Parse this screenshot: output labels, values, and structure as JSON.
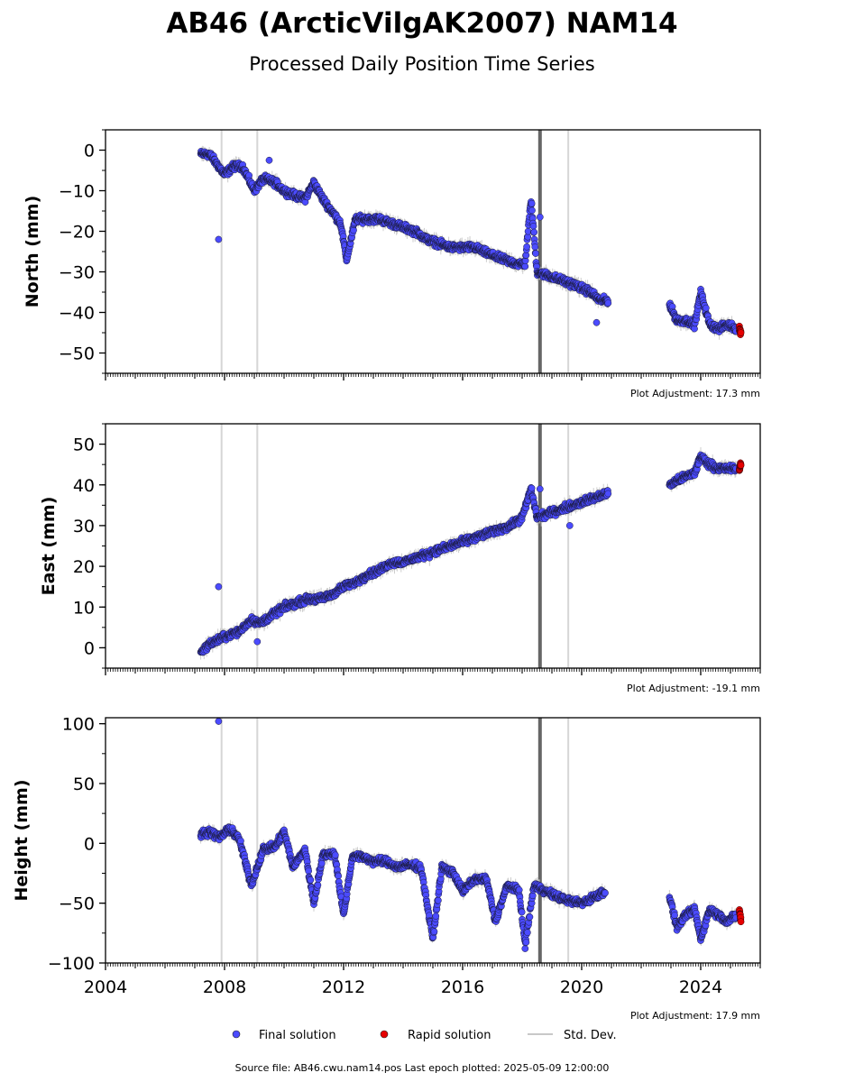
{
  "chart_data": {
    "type": "scatter",
    "title": "AB46 (ArcticVilgAK2007) NAM14",
    "subtitle": "Processed Daily Position Time Series",
    "x_ticks": [
      "2004",
      "2008",
      "2012",
      "2016",
      "2020",
      "2024"
    ],
    "xlim": [
      2004.0,
      2026.0
    ],
    "event_lines": [
      {
        "x": 2007.9,
        "style": "thin-light"
      },
      {
        "x": 2009.1,
        "style": "thin-light"
      },
      {
        "x": 2018.6,
        "style": "thick-dark"
      },
      {
        "x": 2019.55,
        "style": "thin-light"
      }
    ],
    "legend": [
      {
        "label": "Final solution",
        "color": "#4b4bff",
        "marker": "circle"
      },
      {
        "label": "Rapid solution",
        "color": "#e60000",
        "marker": "circle"
      },
      {
        "label": "Std. Dev.",
        "color": "#c8c8c8",
        "marker": "line"
      }
    ],
    "panels": [
      {
        "ylabel": "North (mm)",
        "ylim": [
          -55,
          5
        ],
        "yticks": [
          0,
          -10,
          -20,
          -30,
          -40,
          -50
        ],
        "ytick_labels": [
          "0",
          "−10",
          "−20",
          "−30",
          "−40",
          "−50"
        ],
        "adjustment": "Plot Adjustment: 17.3 mm",
        "final": [
          [
            2007.2,
            -1
          ],
          [
            2007.5,
            -1
          ],
          [
            2007.8,
            -4
          ],
          [
            2008.0,
            -6
          ],
          [
            2008.3,
            -4
          ],
          [
            2008.6,
            -4
          ],
          [
            2009.0,
            -10
          ],
          [
            2009.3,
            -7
          ],
          [
            2009.7,
            -8
          ],
          [
            2010.0,
            -10
          ],
          [
            2010.3,
            -11
          ],
          [
            2010.7,
            -12
          ],
          [
            2011.0,
            -8
          ],
          [
            2011.3,
            -12
          ],
          [
            2011.6,
            -15
          ],
          [
            2011.9,
            -18
          ],
          [
            2012.1,
            -27
          ],
          [
            2012.4,
            -17
          ],
          [
            2012.8,
            -17
          ],
          [
            2013.2,
            -17
          ],
          [
            2013.6,
            -18
          ],
          [
            2014.0,
            -19
          ],
          [
            2014.4,
            -20
          ],
          [
            2014.8,
            -22
          ],
          [
            2015.2,
            -23
          ],
          [
            2015.6,
            -24
          ],
          [
            2016.0,
            -24
          ],
          [
            2016.4,
            -24
          ],
          [
            2016.7,
            -25
          ],
          [
            2017.0,
            -26
          ],
          [
            2017.4,
            -27
          ],
          [
            2017.8,
            -28
          ],
          [
            2018.1,
            -28
          ],
          [
            2018.3,
            -12
          ],
          [
            2018.5,
            -30
          ],
          [
            2018.9,
            -31
          ],
          [
            2019.3,
            -32
          ],
          [
            2019.7,
            -33
          ],
          [
            2020.0,
            -34
          ],
          [
            2020.3,
            -35
          ],
          [
            2020.6,
            -37
          ],
          [
            2020.9,
            -37
          ],
          [
            2022.95,
            -38
          ],
          [
            2023.2,
            -42
          ],
          [
            2023.5,
            -42
          ],
          [
            2023.8,
            -43
          ],
          [
            2024.0,
            -35
          ],
          [
            2024.3,
            -43
          ],
          [
            2024.6,
            -44
          ],
          [
            2024.9,
            -43
          ],
          [
            2025.2,
            -44
          ]
        ],
        "rapid": [
          [
            2025.3,
            -44
          ],
          [
            2025.35,
            -45
          ]
        ],
        "outliers": [
          [
            2007.8,
            -22
          ],
          [
            2009.5,
            -2.5
          ],
          [
            2018.6,
            -16.5
          ],
          [
            2020.5,
            -42.5
          ]
        ]
      },
      {
        "ylabel": "East (mm)",
        "ylim": [
          -5,
          55
        ],
        "yticks": [
          0,
          10,
          20,
          30,
          40,
          50
        ],
        "ytick_labels": [
          "0",
          "10",
          "20",
          "30",
          "40",
          "50"
        ],
        "adjustment": "Plot Adjustment: -19.1 mm",
        "final": [
          [
            2007.2,
            -1
          ],
          [
            2007.5,
            1
          ],
          [
            2007.8,
            2
          ],
          [
            2008.1,
            3
          ],
          [
            2008.5,
            4
          ],
          [
            2008.9,
            7
          ],
          [
            2009.2,
            6
          ],
          [
            2009.6,
            8
          ],
          [
            2010.0,
            10
          ],
          [
            2010.4,
            11
          ],
          [
            2010.8,
            12
          ],
          [
            2011.2,
            12
          ],
          [
            2011.6,
            13
          ],
          [
            2012.0,
            15
          ],
          [
            2012.4,
            16
          ],
          [
            2012.8,
            18
          ],
          [
            2013.2,
            19
          ],
          [
            2013.6,
            21
          ],
          [
            2014.0,
            21
          ],
          [
            2014.4,
            22
          ],
          [
            2014.8,
            23
          ],
          [
            2015.2,
            24
          ],
          [
            2015.6,
            25
          ],
          [
            2016.0,
            26
          ],
          [
            2016.4,
            27
          ],
          [
            2016.8,
            28
          ],
          [
            2017.2,
            29
          ],
          [
            2017.6,
            30
          ],
          [
            2018.0,
            32
          ],
          [
            2018.3,
            39
          ],
          [
            2018.5,
            32
          ],
          [
            2018.9,
            33
          ],
          [
            2019.3,
            34
          ],
          [
            2019.7,
            35
          ],
          [
            2020.1,
            36
          ],
          [
            2020.5,
            37
          ],
          [
            2020.9,
            38
          ],
          [
            2022.95,
            40
          ],
          [
            2023.2,
            41
          ],
          [
            2023.5,
            42
          ],
          [
            2023.8,
            43
          ],
          [
            2024.0,
            47
          ],
          [
            2024.3,
            45
          ],
          [
            2024.6,
            44
          ],
          [
            2024.9,
            44
          ],
          [
            2025.2,
            44
          ]
        ],
        "rapid": [
          [
            2025.3,
            44
          ],
          [
            2025.35,
            45
          ]
        ],
        "outliers": [
          [
            2007.8,
            15
          ],
          [
            2009.1,
            1.5
          ],
          [
            2018.6,
            39
          ],
          [
            2019.6,
            30
          ]
        ]
      },
      {
        "ylabel": "Height (mm)",
        "ylim": [
          -100,
          105
        ],
        "yticks": [
          100,
          50,
          0,
          -50,
          -100
        ],
        "ytick_labels": [
          "100",
          "50",
          "0",
          "−50",
          "−100"
        ],
        "adjustment": "Plot Adjustment: 17.9 mm",
        "final": [
          [
            2007.2,
            8
          ],
          [
            2007.5,
            10
          ],
          [
            2007.8,
            5
          ],
          [
            2008.2,
            12
          ],
          [
            2008.5,
            3
          ],
          [
            2008.9,
            -35
          ],
          [
            2009.3,
            -5
          ],
          [
            2009.7,
            -3
          ],
          [
            2010.0,
            10
          ],
          [
            2010.3,
            -20
          ],
          [
            2010.7,
            -5
          ],
          [
            2011.0,
            -50
          ],
          [
            2011.3,
            -10
          ],
          [
            2011.7,
            -8
          ],
          [
            2012.0,
            -60
          ],
          [
            2012.3,
            -10
          ],
          [
            2012.7,
            -12
          ],
          [
            2013.0,
            -15
          ],
          [
            2013.4,
            -15
          ],
          [
            2013.8,
            -20
          ],
          [
            2014.2,
            -18
          ],
          [
            2014.6,
            -20
          ],
          [
            2015.0,
            -80
          ],
          [
            2015.3,
            -20
          ],
          [
            2015.7,
            -25
          ],
          [
            2016.0,
            -40
          ],
          [
            2016.4,
            -30
          ],
          [
            2016.8,
            -30
          ],
          [
            2017.1,
            -65
          ],
          [
            2017.5,
            -35
          ],
          [
            2017.9,
            -40
          ],
          [
            2018.1,
            -85
          ],
          [
            2018.4,
            -35
          ],
          [
            2018.8,
            -40
          ],
          [
            2019.2,
            -45
          ],
          [
            2019.6,
            -48
          ],
          [
            2020.0,
            -50
          ],
          [
            2020.4,
            -45
          ],
          [
            2020.8,
            -40
          ],
          [
            2022.95,
            -45
          ],
          [
            2023.2,
            -70
          ],
          [
            2023.5,
            -60
          ],
          [
            2023.8,
            -55
          ],
          [
            2024.0,
            -80
          ],
          [
            2024.3,
            -55
          ],
          [
            2024.6,
            -60
          ],
          [
            2024.9,
            -65
          ],
          [
            2025.2,
            -60
          ]
        ],
        "rapid": [
          [
            2025.3,
            -55
          ],
          [
            2025.35,
            -65
          ]
        ],
        "outliers": [
          [
            2007.8,
            102
          ]
        ]
      }
    ]
  },
  "footer": "Source file: AB46.cwu.nam14.pos  Last epoch plotted: 2025-05-09 12:00:00",
  "colors": {
    "final": "#4b4bff",
    "rapid": "#e60000",
    "stddev": "#c8c8c8",
    "event_thick": "#666666",
    "event_thin": "#d6d6d6"
  }
}
